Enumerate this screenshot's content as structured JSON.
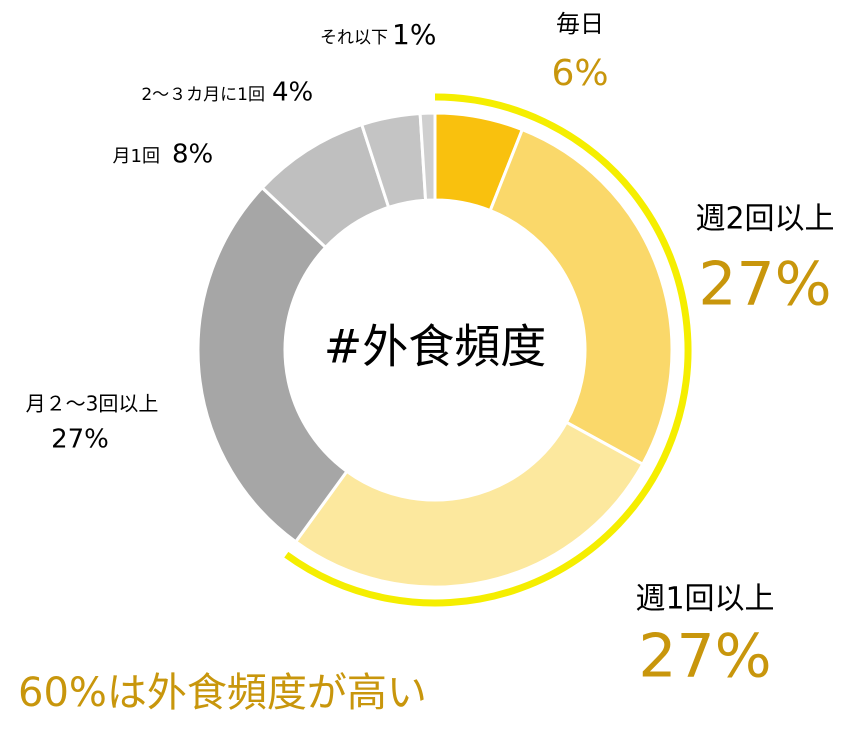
{
  "chart_data": {
    "type": "donut",
    "center_label": "#外食頻度",
    "annotation": "60%は外食頻度が高い",
    "categories": [
      "毎日",
      "週2回以上",
      "週1回以上",
      "月２～3回以上",
      "月1回",
      "2～３カ月に1回",
      "それ以下"
    ],
    "values": [
      6,
      27,
      27,
      27,
      8,
      4,
      1
    ],
    "value_labels": [
      "6%",
      "27%",
      "27%",
      "27%",
      "8%",
      "4%",
      "1%"
    ],
    "colors": [
      "#f9c10e",
      "#fad86a",
      "#fce89e",
      "#a6a6a6",
      "#bfbfbf",
      "#c4c4c4",
      "#cfcfcf"
    ]
  }
}
